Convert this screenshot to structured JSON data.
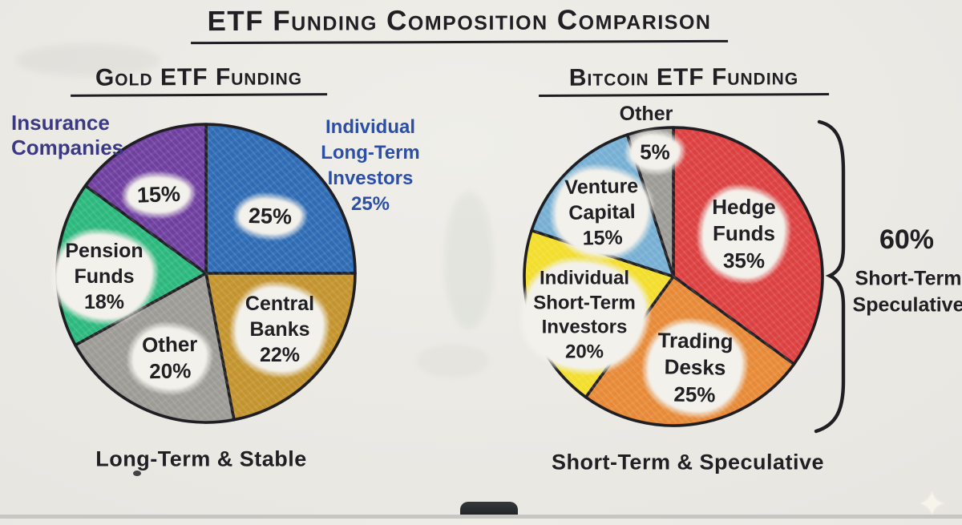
{
  "page": {
    "title": "ETF Funding Composition Comparison"
  },
  "charts": {
    "gold": {
      "heading": "Gold ETF Funding",
      "caption": "Long-Term & Stable",
      "outside_labels": {
        "insurance": "Insurance\nCompanies",
        "individual": "Individual\nLong-Term\nInvestors\n25%"
      },
      "slice_labels": {
        "individual_pct": "25%",
        "insurance_pct": "15%",
        "pension": "Pension\nFunds\n18%",
        "other": "Other\n20%",
        "central": "Central\nBanks\n22%"
      }
    },
    "bitcoin": {
      "heading": "Bitcoin ETF Funding",
      "caption": "Short-Term & Speculative",
      "outside_labels": {
        "other": "Other"
      },
      "slice_labels": {
        "other_pct": "5%",
        "venture": "Venture\nCapital\n15%",
        "hedge": "Hedge\nFunds\n35%",
        "individual": "Individual\nShort-Term\nInvestors\n20%",
        "trading": "Trading\nDesks\n25%"
      },
      "annotation": {
        "value": "60%",
        "label": "Short-Term\nSpeculative"
      }
    }
  },
  "chart_data": [
    {
      "type": "pie",
      "title": "Gold ETF Funding",
      "caption": "Long-Term & Stable",
      "start_angle_deg": 0,
      "direction": "clockwise",
      "slices": [
        {
          "label": "Individual Long-Term Investors",
          "value": 25,
          "color": "#2e6bb4"
        },
        {
          "label": "Central Banks",
          "value": 22,
          "color": "#c3932d"
        },
        {
          "label": "Other",
          "value": 20,
          "color": "#9c9b96"
        },
        {
          "label": "Pension Funds",
          "value": 18,
          "color": "#2bb87d"
        },
        {
          "label": "Insurance Companies",
          "value": 15,
          "color": "#6f3fa0"
        }
      ]
    },
    {
      "type": "pie",
      "title": "Bitcoin ETF Funding",
      "caption": "Short-Term & Speculative",
      "start_angle_deg": 0,
      "direction": "clockwise",
      "slices": [
        {
          "label": "Hedge Funds",
          "value": 35,
          "color": "#dc4040"
        },
        {
          "label": "Trading Desks",
          "value": 25,
          "color": "#e78936"
        },
        {
          "label": "Individual Short-Term Investors",
          "value": 20,
          "color": "#f3de2b"
        },
        {
          "label": "Venture Capital",
          "value": 15,
          "color": "#76afd3"
        },
        {
          "label": "Other",
          "value": 5,
          "color": "#9c9b96"
        }
      ],
      "annotation": "60% Short-Term Speculative"
    }
  ]
}
